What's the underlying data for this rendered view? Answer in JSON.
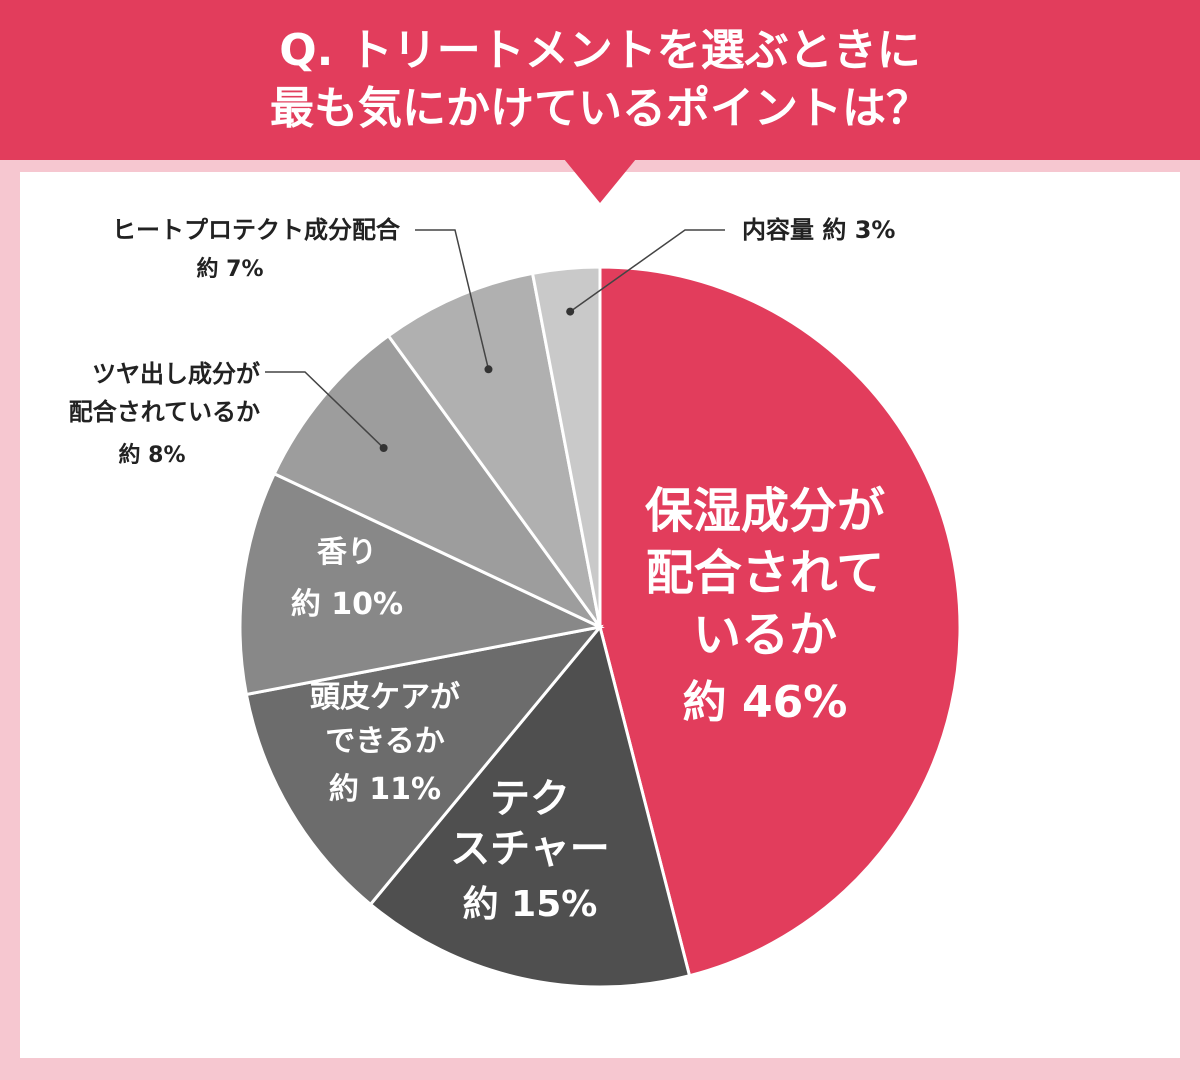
{
  "header": {
    "line1": "Q. トリートメントを選ぶときに",
    "line2": "最も気にかけているポイントは？"
  },
  "chart_data": {
    "type": "pie",
    "slices": [
      {
        "name": "保湿成分が配合されているか",
        "label_lines": [
          "保湿成分が",
          "配合されて",
          "いるか"
        ],
        "value": 46,
        "pct_label": "約 46%",
        "color": "#e23d5c"
      },
      {
        "name": "テクスチャー",
        "label_lines": [
          "テク",
          "スチャー"
        ],
        "value": 15,
        "pct_label": "約 15%",
        "color": "#4f4f4f"
      },
      {
        "name": "頭皮ケアができるか",
        "label_lines": [
          "頭皮ケアが",
          "できるか"
        ],
        "value": 11,
        "pct_label": "約 11%",
        "color": "#6c6c6c"
      },
      {
        "name": "香り",
        "label_lines": [
          "香り"
        ],
        "value": 10,
        "pct_label": "約 10%",
        "color": "#888888"
      },
      {
        "name": "ツヤ出し成分が配合されているか",
        "label_lines": [
          "ツヤ出し成分が",
          "配合されているか"
        ],
        "value": 8,
        "pct_label": "約 8%",
        "color": "#9d9d9d"
      },
      {
        "name": "ヒートプロテクト成分配合",
        "label_lines": [
          "ヒートプロテクト成分配合"
        ],
        "value": 7,
        "pct_label": "約 7%",
        "color": "#b0b0b0"
      },
      {
        "name": "内容量",
        "label_lines": [
          "内容量"
        ],
        "value": 3,
        "pct_label": "約 3%",
        "color": "#c9c9c9",
        "inline_label": "内容量 約 3%"
      }
    ],
    "label_color": "#ffffff",
    "leader_label_color": "#222222"
  }
}
